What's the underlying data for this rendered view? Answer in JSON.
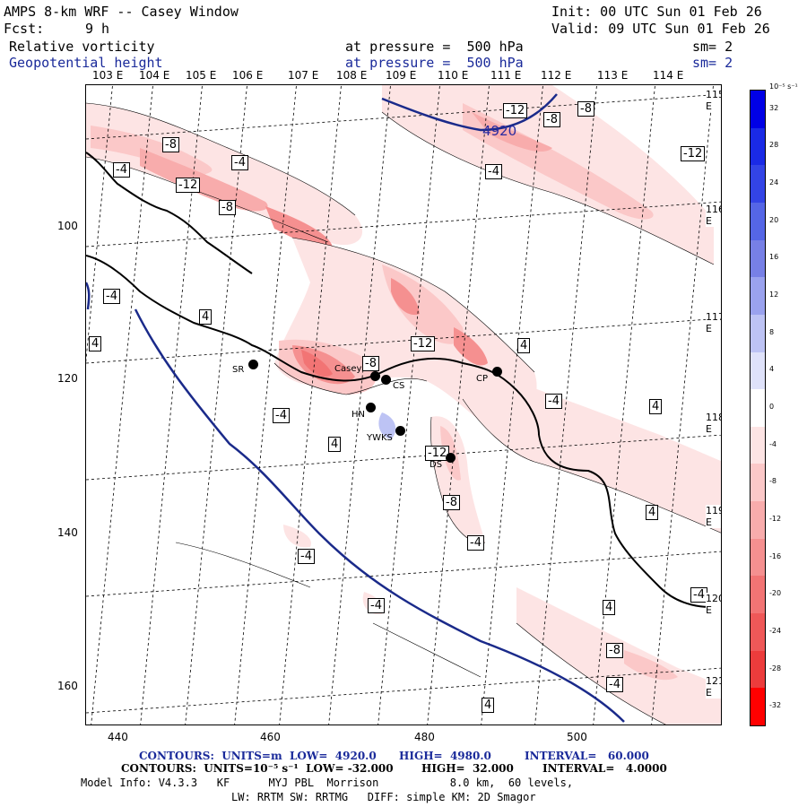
{
  "header": {
    "title": "AMPS 8-km WRF -- Casey Window",
    "init": "Init: 00 UTC Sun 01 Feb 26",
    "fcst_label": "Fcst:",
    "fcst_value": "9 h",
    "valid": "Valid: 09 UTC Sun 01 Feb 26",
    "field1": "Relative vorticity",
    "field1_level": "at pressure =  500 hPa",
    "field1_sm": "sm= 2",
    "field2": "Geopotential height",
    "field2_level": "at pressure =  500 hPa",
    "field2_sm": "sm= 2"
  },
  "top_longitudes": [
    "103 E",
    "104 E",
    "105 E",
    "106 E",
    "107 E",
    "108 E",
    "109 E",
    "110 E",
    "111 E",
    "112 E",
    "113 E",
    "114 E"
  ],
  "right_longitudes": [
    "115 E",
    "116 E",
    "117 E",
    "118 E",
    "119 E",
    "120 E",
    "121 E"
  ],
  "x_ticks": [
    "440",
    "460",
    "480",
    "500"
  ],
  "y_ticks": [
    "100",
    "120",
    "140",
    "160"
  ],
  "stations": [
    {
      "name": "SR"
    },
    {
      "name": "Casey"
    },
    {
      "name": "CS"
    },
    {
      "name": "HN"
    },
    {
      "name": "YWKS"
    },
    {
      "name": "DS"
    },
    {
      "name": "CP"
    }
  ],
  "height_contour_label": "4920",
  "vort_labels": [
    "-8",
    "-12",
    "-4",
    "-12",
    "-8",
    "-8",
    "-4",
    "-4",
    "-12",
    "-8",
    "-4",
    "4",
    "4",
    "4",
    "-12",
    "-8",
    "4",
    "-4",
    "4",
    "-4",
    "4",
    "-12",
    "-8",
    "-4",
    "-4",
    "-4",
    "-4",
    "4",
    "-4",
    "-8",
    "-4",
    "4"
  ],
  "colorbar": {
    "units": "10⁻⁵ s⁻¹",
    "ticks": [
      "32",
      "28",
      "24",
      "20",
      "16",
      "12",
      "8",
      "4",
      "0",
      "-4",
      "-8",
      "-12",
      "-16",
      "-20",
      "-24",
      "-28",
      "-32"
    ],
    "colors": [
      "#0000e6",
      "#1a2ae6",
      "#3344e6",
      "#5566e6",
      "#7780e6",
      "#9aa2ee",
      "#bdc3f4",
      "#dfe2fa",
      "#ffffff",
      "#fde4e4",
      "#fbc8c8",
      "#f8acac",
      "#f59090",
      "#f27474",
      "#ef5858",
      "#ec3c3c",
      "#ff0000"
    ]
  },
  "footer": {
    "line1_a": "CONTOURS:  UNITS=m  LOW=  4920.0",
    "line1_b": "HIGH=  4980.0",
    "line1_c": "INTERVAL=   60.000",
    "line2_a": "CONTOURS:  UNITS=10⁻⁵ s⁻¹  LOW= -32.000",
    "line2_b": "HIGH=  32.000",
    "line2_c": "INTERVAL=   4.0000",
    "line3": "Model Info: V4.3.3   KF      MYJ PBL  Morrison           8.0 km,  60 levels,",
    "line4": "LW: RRTM SW: RRTMG   DIFF: simple KM: 2D Smagor"
  }
}
